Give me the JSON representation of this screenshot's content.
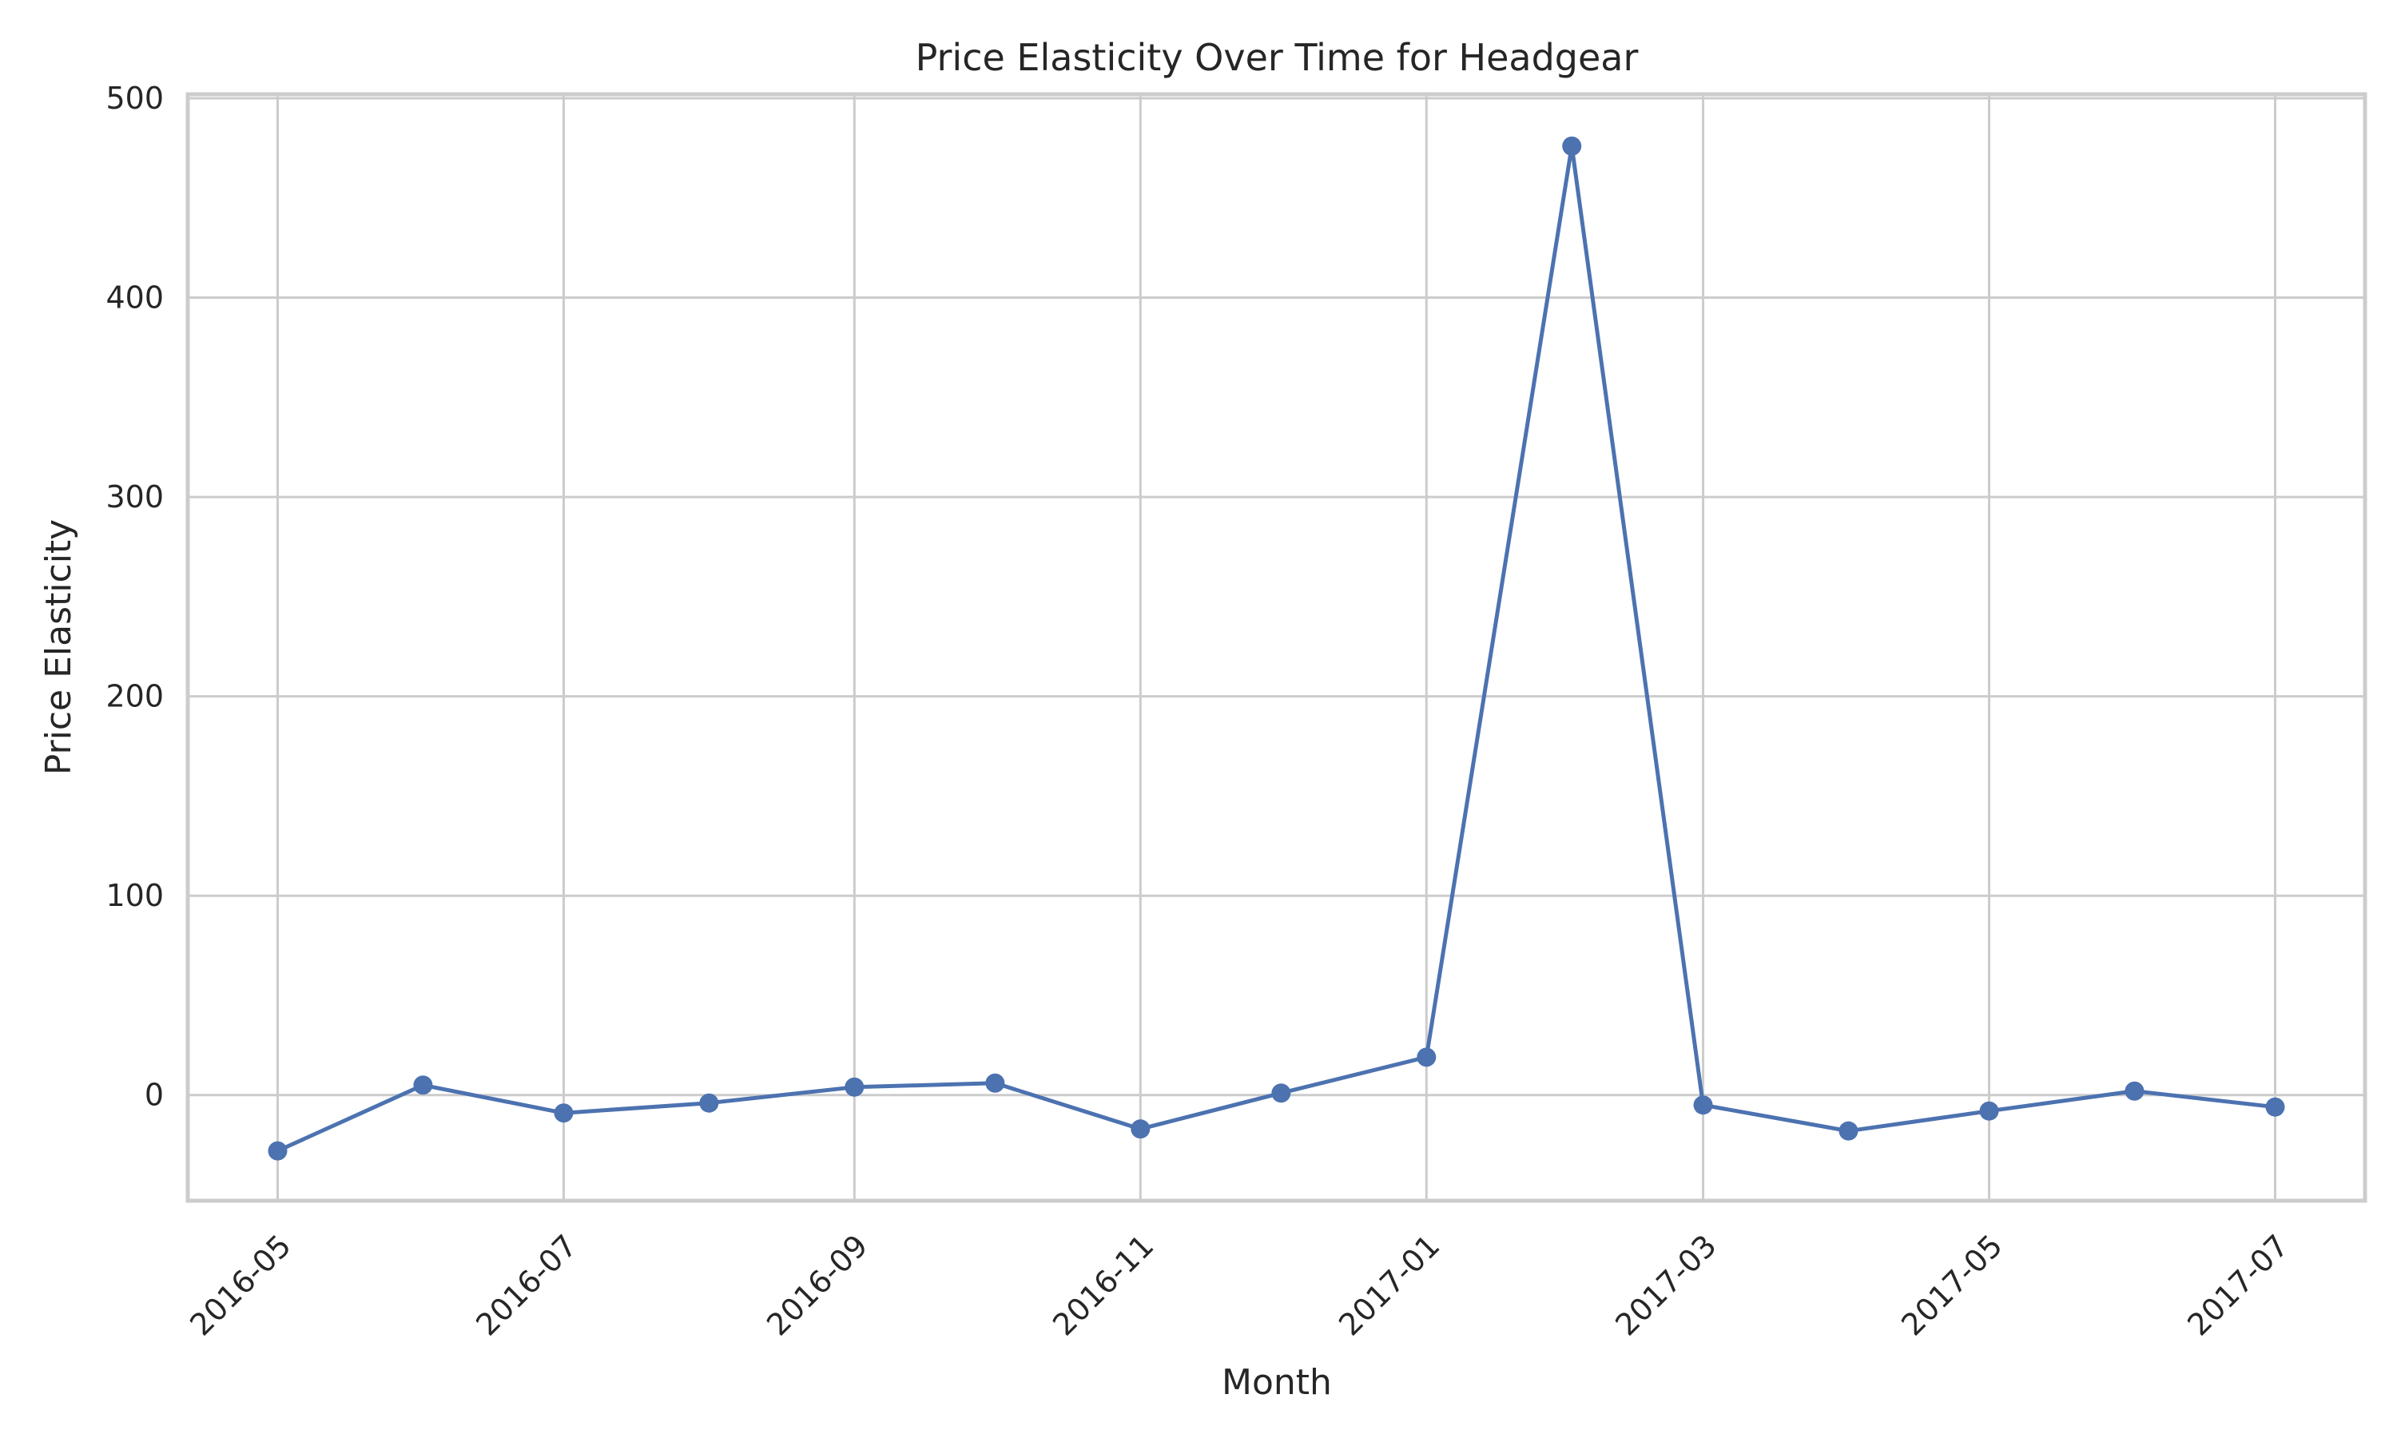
{
  "chart_data": {
    "type": "line",
    "title": "Price Elasticity Over Time for Headgear",
    "xlabel": "Month",
    "ylabel": "Price Elasticity",
    "x": [
      "2016-05",
      "2016-06",
      "2016-07",
      "2016-08",
      "2016-09",
      "2016-10",
      "2016-11",
      "2016-12",
      "2017-01",
      "2017-02",
      "2017-03",
      "2017-04",
      "2017-05",
      "2017-06",
      "2017-07"
    ],
    "x_tick_labels": [
      "2016-05",
      "2016-07",
      "2016-09",
      "2016-11",
      "2017-01",
      "2017-03",
      "2017-05",
      "2017-07"
    ],
    "series": [
      {
        "color": "#4c72b0",
        "values": [
          -28,
          5,
          -9,
          -4,
          4,
          6,
          -17,
          1,
          19,
          476,
          -5,
          -18,
          -8,
          2,
          -6
        ]
      }
    ],
    "ylim": [
      -53,
      502
    ],
    "y_ticks": [
      0,
      100,
      200,
      300,
      400,
      500
    ],
    "grid": true,
    "marker": "circle"
  }
}
